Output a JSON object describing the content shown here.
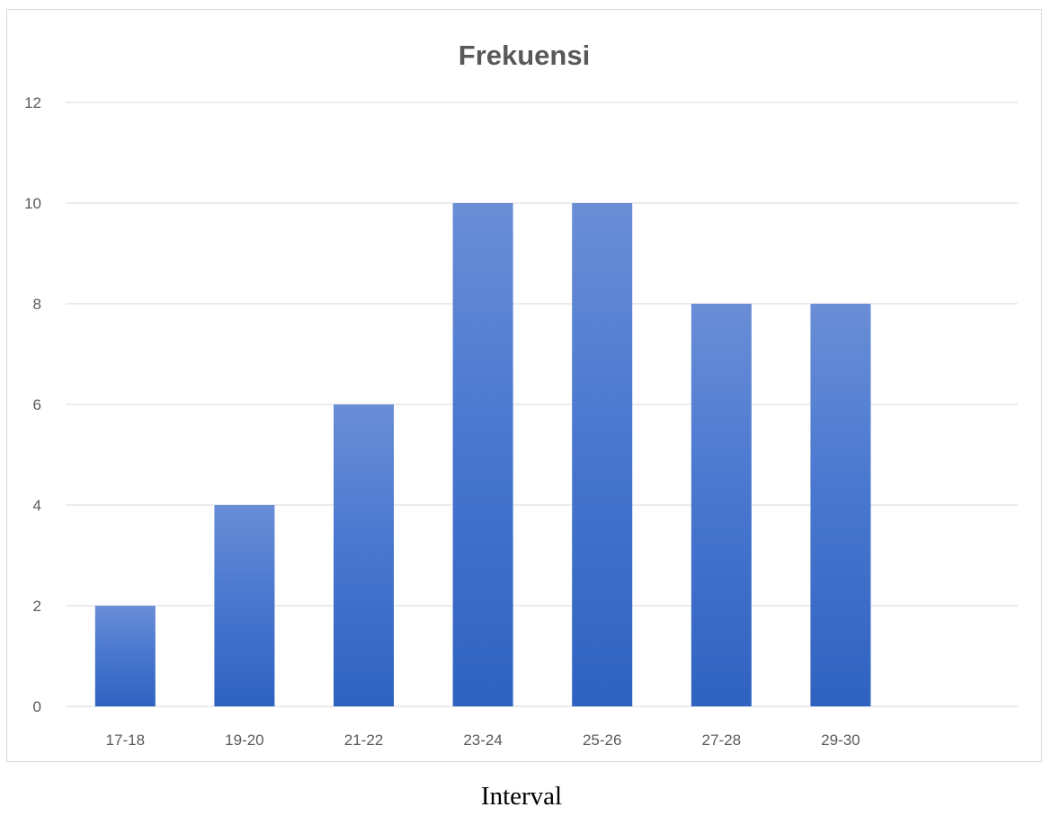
{
  "chart_data": {
    "type": "bar",
    "title": "Frekuensi",
    "xlabel": "Interval",
    "ylabel": "",
    "categories": [
      "17-18",
      "19-20",
      "21-22",
      "23-24",
      "25-26",
      "27-28",
      "29-30"
    ],
    "values": [
      2,
      4,
      6,
      10,
      10,
      8,
      8
    ],
    "ylim": [
      0,
      12
    ],
    "yticks": [
      0,
      2,
      4,
      6,
      8,
      10,
      12
    ],
    "grid": true,
    "legend": "none",
    "colors": {
      "bar_top": "#6a8ed6",
      "bar_bottom": "#2f62c0",
      "grid": "#d9d9d9",
      "text": "#595959"
    }
  }
}
